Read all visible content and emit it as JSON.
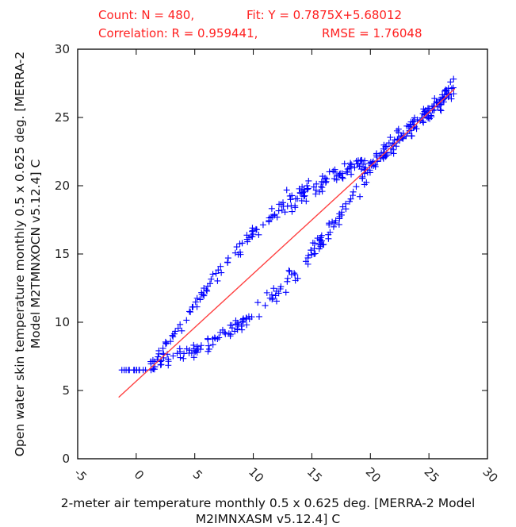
{
  "chart_data": {
    "type": "scatter",
    "stats": {
      "count": "Count: N = 480,",
      "fit": "Fit: Y = 0.7875X+5.68012",
      "correlation": "Correlation: R = 0.959441,",
      "rmse": "RMSE = 1.76048"
    },
    "xlabel_line1": "2-meter air temperature monthly 0.5 x 0.625 deg. [MERRA-2 Model",
    "xlabel_line2": "M2IMNXASM v5.12.4] C",
    "ylabel_line1": "Open water skin temperature monthly 0.5 x 0.625 deg. [MERRA-2",
    "ylabel_line2": "Model M2TMNXOCN v5.12.4] C",
    "xlim": [
      -5,
      30
    ],
    "ylim": [
      0,
      30
    ],
    "xticks": [
      -5,
      0,
      5,
      10,
      15,
      20,
      25,
      30
    ],
    "yticks": [
      0,
      5,
      10,
      15,
      20,
      25,
      30
    ],
    "n_points": 480,
    "fit": {
      "slope": 0.7875,
      "intercept": 5.68012,
      "x_range": [
        -1.5,
        27.2
      ]
    },
    "marker": "+",
    "colors": {
      "points": "#0000ff",
      "fit_line": "#ff4040",
      "stats_text": "#ff2020",
      "axes": "#000000"
    }
  }
}
